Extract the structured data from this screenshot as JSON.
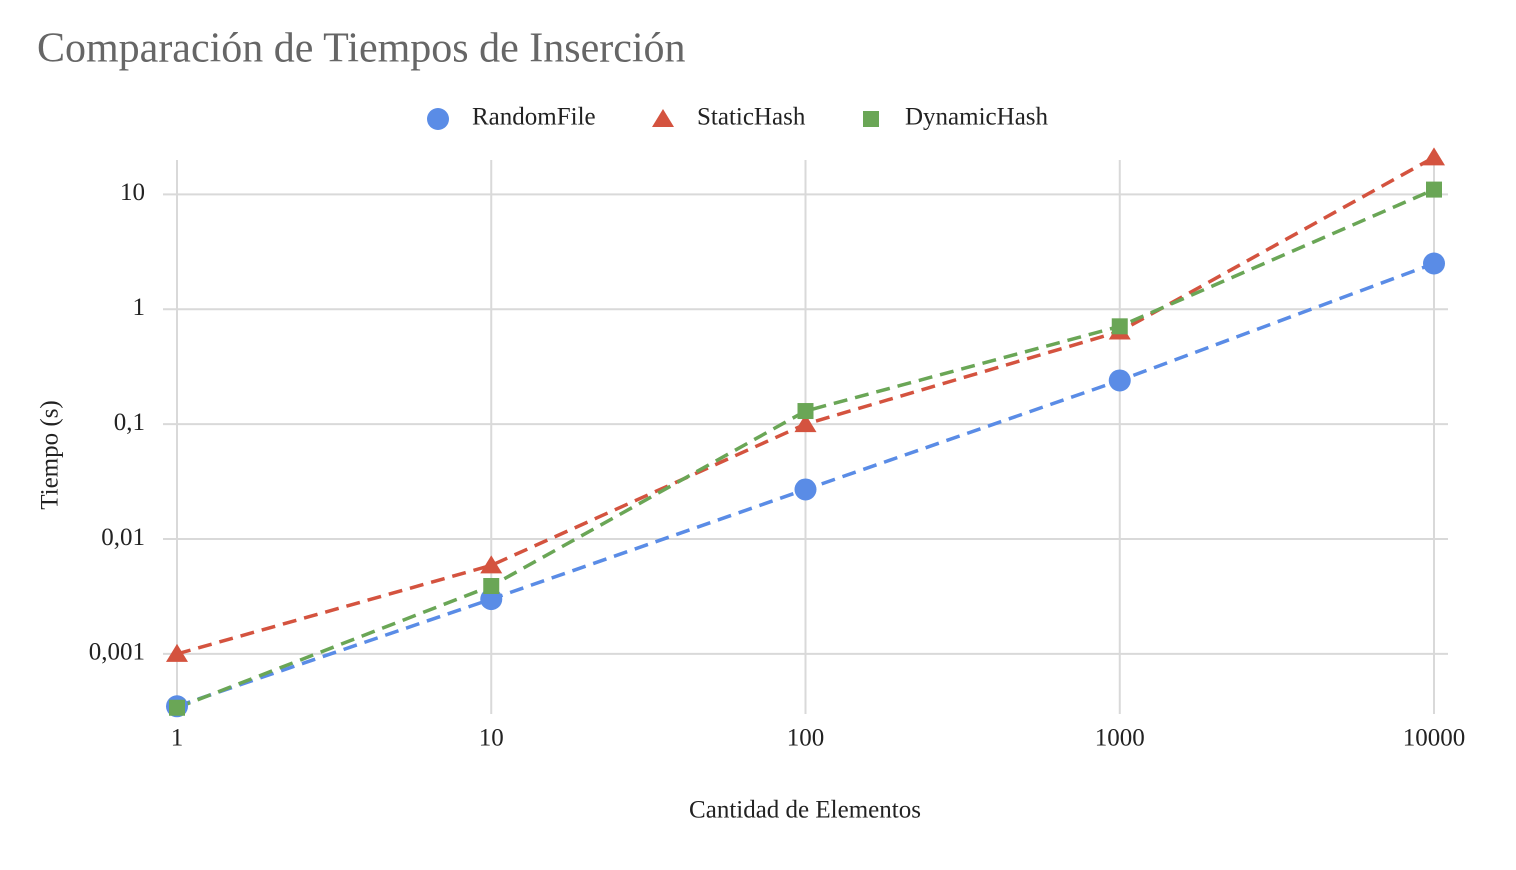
{
  "chart_data": {
    "type": "line",
    "title": "Comparación de Tiempos de Inserción",
    "x_label": "Cantidad de Elementos",
    "y_label": "Tiempo (s)",
    "x": [
      1,
      10,
      100,
      1000,
      10000
    ],
    "series": [
      {
        "name": "RandomFile",
        "color": "#5a8ce6",
        "marker": "circle",
        "values": [
          0.00035,
          0.003,
          0.027,
          0.24,
          2.5
        ]
      },
      {
        "name": "StaticHash",
        "color": "#d4533f",
        "marker": "triangle",
        "values": [
          0.001,
          0.0059,
          0.1,
          0.64,
          21
        ]
      },
      {
        "name": "DynamicHash",
        "color": "#6aa656",
        "marker": "square",
        "values": [
          0.00034,
          0.0039,
          0.13,
          0.71,
          11
        ]
      }
    ],
    "x_log": true,
    "y_log": true,
    "xlim": [
      1,
      10000
    ],
    "xticks": [
      1,
      10,
      100,
      1000,
      10000
    ],
    "ylim": [
      0.0003,
      22
    ],
    "yticks": [
      {
        "value": 0.001,
        "label": "0,001"
      },
      {
        "value": 0.01,
        "label": "0,01"
      },
      {
        "value": 0.1,
        "label": "0,1"
      },
      1,
      10
    ],
    "grid": true,
    "legend": "top"
  }
}
